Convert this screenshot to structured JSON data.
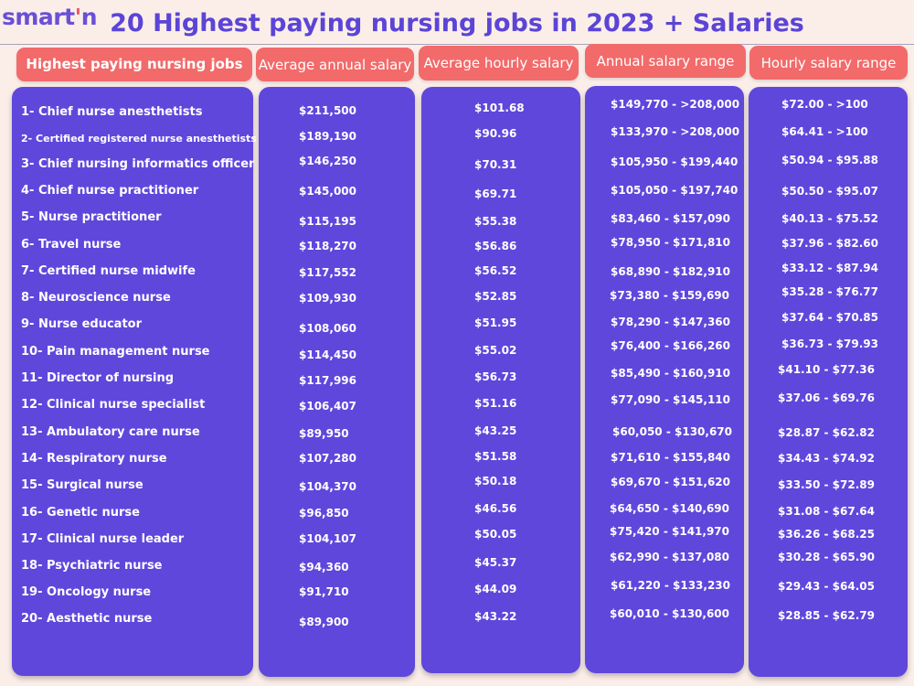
{
  "brand": {
    "logo_main": "smart",
    "logo_apos": "'",
    "logo_end": "n"
  },
  "title": "20 Highest paying nursing jobs in 2023 + Salaries",
  "headers": {
    "job": "Highest paying nursing jobs",
    "annual": "Average annual  salary",
    "hourly": "Average hourly salary",
    "annual_range": "Annual salary range",
    "hourly_range": "Hourly salary range"
  },
  "colors": {
    "accent": "#f26a6a",
    "panel": "#5f47dc",
    "title": "#5b44d6",
    "background": "#fbeee9"
  },
  "rows": [
    {
      "job": "1- Chief nurse anesthetists",
      "annual": "$211,500",
      "hourly": "$101.68",
      "annual_range": "$149,770 - >208,000",
      "hourly_range": "$72.00 - >100"
    },
    {
      "job": "2- Certified registered nurse anesthetists",
      "annual": "$189,190",
      "hourly": "$90.96",
      "annual_range": "$133,970 - >208,000",
      "hourly_range": "$64.41 - >100"
    },
    {
      "job": "3- Chief nursing informatics officer",
      "annual": "$146,250",
      "hourly": "$70.31",
      "annual_range": "$105,950 - $199,440",
      "hourly_range": "$50.94 - $95.88"
    },
    {
      "job": "4- Chief nurse practitioner",
      "annual": "$145,000",
      "hourly": "$69.71",
      "annual_range": "$105,050 - $197,740",
      "hourly_range": "$50.50 - $95.07"
    },
    {
      "job": "5- Nurse practitioner",
      "annual": "$115,195",
      "hourly": "$55.38",
      "annual_range": "$83,460 - $157,090",
      "hourly_range": "$40.13 - $75.52"
    },
    {
      "job": "6- Travel nurse",
      "annual": "$118,270",
      "hourly": "$56.86",
      "annual_range": "$78,950 - $171,810",
      "hourly_range": "$37.96 - $82.60"
    },
    {
      "job": "7- Certified nurse midwife",
      "annual": "$117,552",
      "hourly": "$56.52",
      "annual_range": "$68,890 - $182,910",
      "hourly_range": "$33.12 - $87.94"
    },
    {
      "job": "8- Neuroscience nurse",
      "annual": "$109,930",
      "hourly": "$52.85",
      "annual_range": "$73,380 - $159,690",
      "hourly_range": "$35.28 - $76.77"
    },
    {
      "job": "9- Nurse educator",
      "annual": "$108,060",
      "hourly": "$51.95",
      "annual_range": "$78,290 - $147,360",
      "hourly_range": "$37.64 - $70.85"
    },
    {
      "job": "10- Pain management nurse",
      "annual": "$114,450",
      "hourly": "$55.02",
      "annual_range": "$76,400 - $166,260",
      "hourly_range": "$36.73 - $79.93"
    },
    {
      "job": "11- Director of nursing",
      "annual": "$117,996",
      "hourly": "$56.73",
      "annual_range": "$85,490 - $160,910",
      "hourly_range": "$41.10 - $77.36"
    },
    {
      "job": "12- Clinical nurse specialist",
      "annual": "$106,407",
      "hourly": "$51.16",
      "annual_range": "$77,090 - $145,110",
      "hourly_range": "$37.06 - $69.76"
    },
    {
      "job": "13- Ambulatory care nurse",
      "annual": "$89,950",
      "hourly": "$43.25",
      "annual_range": "$60,050 - $130,670",
      "hourly_range": "$28.87 - $62.82"
    },
    {
      "job": "14- Respiratory nurse",
      "annual": "$107,280",
      "hourly": "$51.58",
      "annual_range": "$71,610 - $155,840",
      "hourly_range": "$34.43 - $74.92"
    },
    {
      "job": "15- Surgical nurse",
      "annual": "$104,370",
      "hourly": "$50.18",
      "annual_range": "$69,670 - $151,620",
      "hourly_range": "$33.50 - $72.89"
    },
    {
      "job": "16- Genetic nurse",
      "annual": "$96,850",
      "hourly": "$46.56",
      "annual_range": "$64,650 - $140,690",
      "hourly_range": "$31.08 - $67.64"
    },
    {
      "job": "17- Clinical nurse leader",
      "annual": "$104,107",
      "hourly": "$50.05",
      "annual_range": "$75,420 - $141,970",
      "hourly_range": "$36.26 - $68.25"
    },
    {
      "job": "18- Psychiatric nurse",
      "annual": "$94,360",
      "hourly": "$45.37",
      "annual_range": "$62,990 - $137,080",
      "hourly_range": "$30.28 - $65.90"
    },
    {
      "job": "19- Oncology nurse",
      "annual": "$91,710",
      "hourly": "$44.09",
      "annual_range": "$61,220 - $133,230",
      "hourly_range": "$29.43 - $64.05"
    },
    {
      "job": "20- Aesthetic nurse",
      "annual": "$89,900",
      "hourly": "$43.22",
      "annual_range": "$60,010 - $130,600",
      "hourly_range": "$28.85 - $62.79"
    }
  ]
}
